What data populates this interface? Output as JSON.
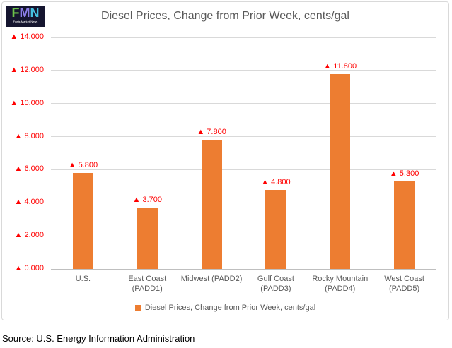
{
  "logo": {
    "letters": [
      {
        "char": "F",
        "color": "#6cc24a"
      },
      {
        "char": "M",
        "color": "#8b7de8"
      },
      {
        "char": "N",
        "color": "#45c0e0"
      }
    ],
    "caption": "Fuels Market News",
    "background": "#15152f"
  },
  "chart_data": {
    "type": "bar",
    "title": "Diesel Prices, Change from Prior Week, cents/gal",
    "categories": [
      "U.S.",
      "East Coast (PADD1)",
      "Midwest (PADD2)",
      "Gulf Coast (PADD3)",
      "Rocky Mountain (PADD4)",
      "West Coast (PADD5)"
    ],
    "category_lines": [
      [
        "U.S."
      ],
      [
        "East Coast",
        "(PADD1)"
      ],
      [
        "Midwest (PADD2)"
      ],
      [
        "Gulf Coast",
        "(PADD3)"
      ],
      [
        "Rocky Mountain",
        "(PADD4)"
      ],
      [
        "West Coast",
        "(PADD5)"
      ]
    ],
    "series": [
      {
        "name": "Diesel Prices, Change from Prior Week, cents/gal",
        "values": [
          5.8,
          3.7,
          7.8,
          4.8,
          11.8,
          5.3
        ],
        "data_labels": [
          "▲ 5.800",
          "▲ 3.700",
          "▲ 7.800",
          "▲ 4.800",
          "▲ 11.800",
          "▲ 5.300"
        ]
      }
    ],
    "xlabel": "",
    "ylabel": "",
    "ylim": [
      0,
      14
    ],
    "yticks": [
      {
        "value": 0,
        "label": "▲ 0.000"
      },
      {
        "value": 2,
        "label": "▲ 2.000"
      },
      {
        "value": 4,
        "label": "▲ 4.000"
      },
      {
        "value": 6,
        "label": "▲ 6.000"
      },
      {
        "value": 8,
        "label": "▲ 8.000"
      },
      {
        "value": 10,
        "label": "▲ 10.000"
      },
      {
        "value": 12,
        "label": "▲ 12.000"
      },
      {
        "value": 14,
        "label": "▲ 14.000"
      }
    ],
    "grid": true,
    "legend_position": "bottom",
    "legend_label": "Diesel Prices, Change from Prior Week, cents/gal",
    "colors": {
      "bar": "#ED7D31",
      "data_label": "#FF0000",
      "ytick_text": "#FF0000",
      "xtick_text": "#595959",
      "title_text": "#595959",
      "gridline": "#D9D9D9",
      "axis_line": "#BFBFBF",
      "frame_border": "#D9D9D9"
    }
  },
  "source_note": "Source: U.S. Energy Information Administration"
}
